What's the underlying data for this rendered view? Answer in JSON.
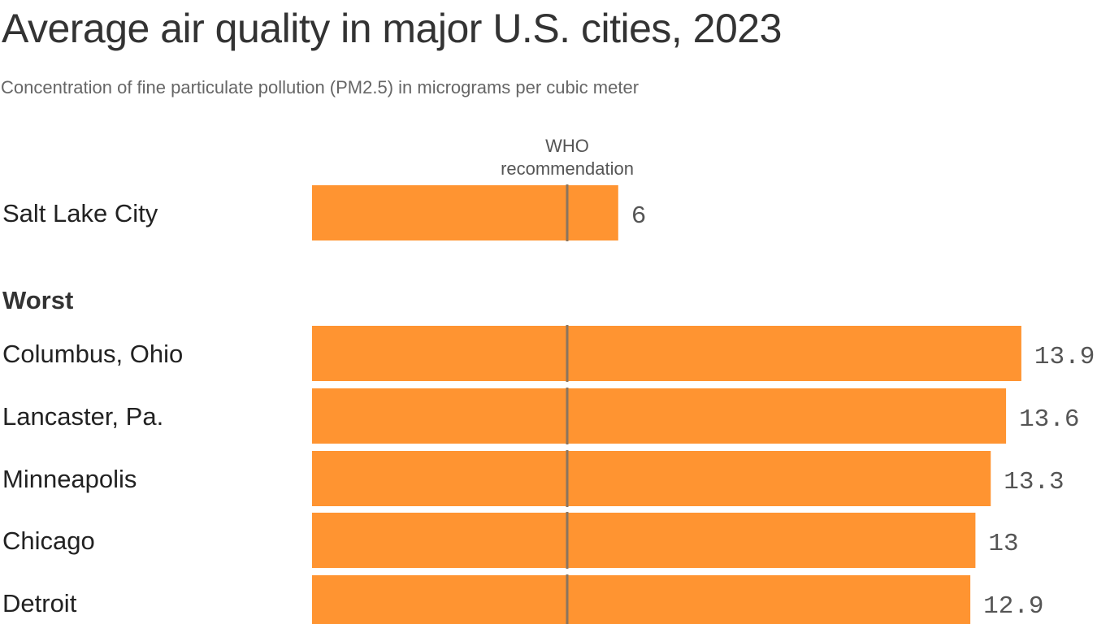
{
  "title": "Average air quality in major U.S. cities, 2023",
  "subtitle": "Concentration of fine particulate pollution (PM2.5) in micrograms per cubic meter",
  "chart_data": {
    "type": "bar",
    "orientation": "horizontal",
    "title": "Average air quality in major U.S. cities, 2023",
    "subtitle": "Concentration of fine particulate pollution (PM2.5) in micrograms per cubic meter",
    "xlim": [
      0,
      15.6
    ],
    "grid": false,
    "bar_color": "#FF9431",
    "reference_line": {
      "value": 5,
      "label_lines": [
        "WHO",
        "recommendation"
      ],
      "color": "#8a7560"
    },
    "groups": [
      {
        "label": "",
        "categories": [
          "Salt Lake City"
        ],
        "values": [
          6
        ]
      },
      {
        "label": "Worst",
        "categories": [
          "Columbus, Ohio",
          "Lancaster, Pa.",
          "Minneapolis",
          "Chicago",
          "Detroit"
        ],
        "values": [
          13.9,
          13.6,
          13.3,
          13,
          12.9
        ]
      }
    ]
  }
}
